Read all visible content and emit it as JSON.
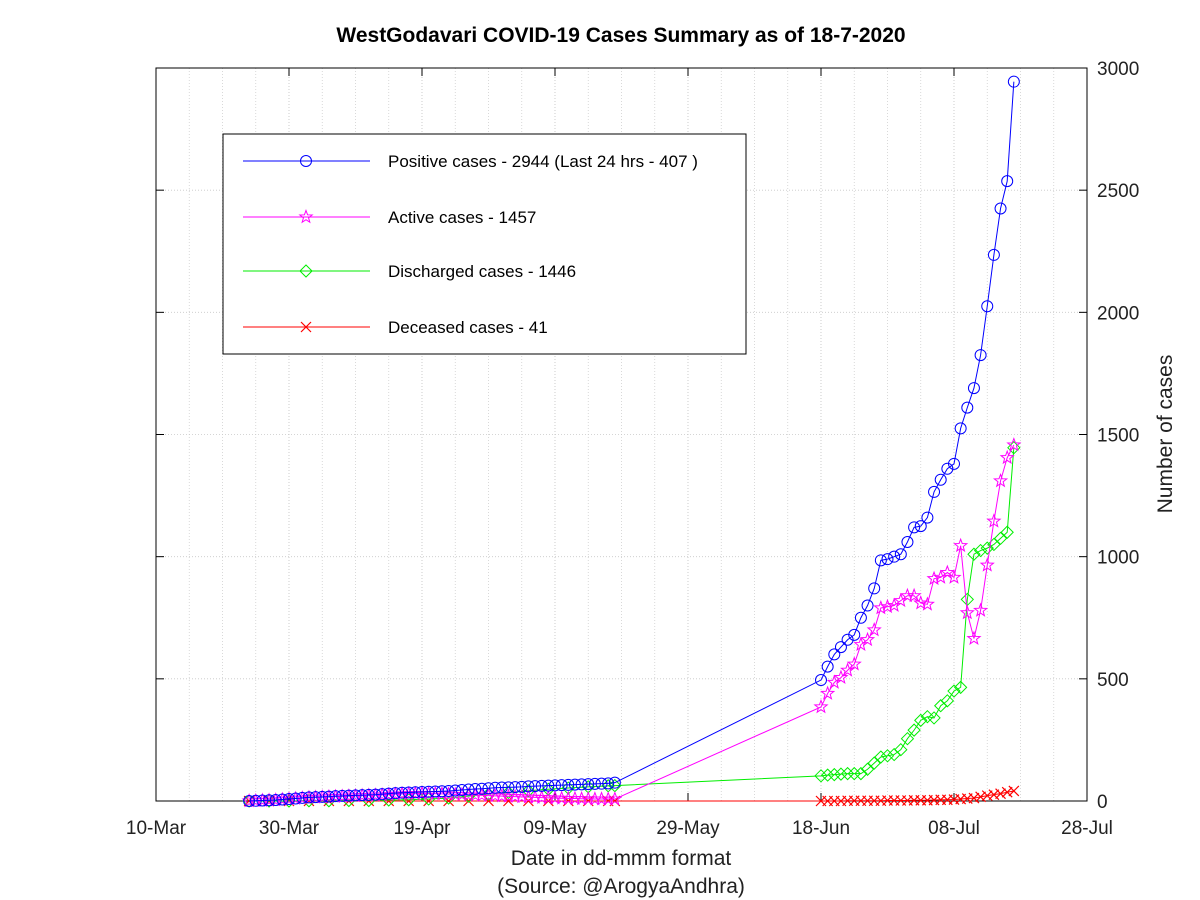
{
  "chart_data": {
    "type": "line",
    "title": "WestGodavari COVID-19 Cases Summary as of 18-7-2020",
    "xlabel": "Date in dd-mmm format",
    "xlabel_note": "(Source: @ArogyaAndhra)",
    "ylabel": "Number of cases",
    "xlim": [
      "2020-03-10",
      "2020-07-28"
    ],
    "ylim": [
      0,
      3000
    ],
    "x_ticks": [
      {
        "date": "2020-03-10",
        "label": "10-Mar"
      },
      {
        "date": "2020-03-30",
        "label": "30-Mar"
      },
      {
        "date": "2020-04-19",
        "label": "19-Apr"
      },
      {
        "date": "2020-05-09",
        "label": "09-May"
      },
      {
        "date": "2020-05-29",
        "label": "29-May"
      },
      {
        "date": "2020-06-18",
        "label": "18-Jun"
      },
      {
        "date": "2020-07-08",
        "label": "08-Jul"
      },
      {
        "date": "2020-07-28",
        "label": "28-Jul"
      }
    ],
    "y_ticks": [
      0,
      500,
      1000,
      1500,
      2000,
      2500,
      3000
    ],
    "y_axis_side": "right",
    "grid": "dotted",
    "legend_placement": "top-left",
    "series": [
      {
        "name": "Positive cases - 2944 (Last 24 hrs - 407 )",
        "color": "#0000ff",
        "marker": "circle",
        "points": [
          [
            "2020-03-24",
            0
          ],
          [
            "2020-03-25",
            1
          ],
          [
            "2020-03-26",
            2
          ],
          [
            "2020-03-27",
            3
          ],
          [
            "2020-03-28",
            4
          ],
          [
            "2020-03-29",
            6
          ],
          [
            "2020-03-30",
            8
          ],
          [
            "2020-03-31",
            10
          ],
          [
            "2020-04-01",
            13
          ],
          [
            "2020-04-02",
            15
          ],
          [
            "2020-04-03",
            16
          ],
          [
            "2020-04-04",
            17
          ],
          [
            "2020-04-05",
            18
          ],
          [
            "2020-04-06",
            20
          ],
          [
            "2020-04-07",
            21
          ],
          [
            "2020-04-08",
            22
          ],
          [
            "2020-04-09",
            23
          ],
          [
            "2020-04-10",
            24
          ],
          [
            "2020-04-11",
            25
          ],
          [
            "2020-04-12",
            26
          ],
          [
            "2020-04-13",
            28
          ],
          [
            "2020-04-14",
            30
          ],
          [
            "2020-04-15",
            32
          ],
          [
            "2020-04-16",
            34
          ],
          [
            "2020-04-17",
            35
          ],
          [
            "2020-04-18",
            36
          ],
          [
            "2020-04-19",
            37
          ],
          [
            "2020-04-20",
            38
          ],
          [
            "2020-04-21",
            39
          ],
          [
            "2020-04-22",
            40
          ],
          [
            "2020-04-23",
            41
          ],
          [
            "2020-04-24",
            43
          ],
          [
            "2020-04-25",
            45
          ],
          [
            "2020-04-26",
            47
          ],
          [
            "2020-04-27",
            49
          ],
          [
            "2020-04-28",
            50
          ],
          [
            "2020-04-29",
            52
          ],
          [
            "2020-04-30",
            54
          ],
          [
            "2020-05-01",
            55
          ],
          [
            "2020-05-02",
            56
          ],
          [
            "2020-05-03",
            57
          ],
          [
            "2020-05-04",
            58
          ],
          [
            "2020-05-05",
            60
          ],
          [
            "2020-05-06",
            61
          ],
          [
            "2020-05-07",
            62
          ],
          [
            "2020-05-08",
            63
          ],
          [
            "2020-05-09",
            64
          ],
          [
            "2020-05-10",
            65
          ],
          [
            "2020-05-11",
            66
          ],
          [
            "2020-05-12",
            67
          ],
          [
            "2020-05-13",
            68
          ],
          [
            "2020-05-14",
            69
          ],
          [
            "2020-05-15",
            70
          ],
          [
            "2020-05-16",
            71
          ],
          [
            "2020-05-17",
            72
          ],
          [
            "2020-05-18",
            75
          ],
          [
            "2020-06-18",
            495
          ],
          [
            "2020-06-19",
            550
          ],
          [
            "2020-06-20",
            600
          ],
          [
            "2020-06-21",
            630
          ],
          [
            "2020-06-22",
            660
          ],
          [
            "2020-06-23",
            680
          ],
          [
            "2020-06-24",
            750
          ],
          [
            "2020-06-25",
            800
          ],
          [
            "2020-06-26",
            870
          ],
          [
            "2020-06-27",
            985
          ],
          [
            "2020-06-28",
            990
          ],
          [
            "2020-06-29",
            1000
          ],
          [
            "2020-06-30",
            1010
          ],
          [
            "2020-07-01",
            1060
          ],
          [
            "2020-07-02",
            1120
          ],
          [
            "2020-07-03",
            1125
          ],
          [
            "2020-07-04",
            1160
          ],
          [
            "2020-07-05",
            1265
          ],
          [
            "2020-07-06",
            1315
          ],
          [
            "2020-07-07",
            1360
          ],
          [
            "2020-07-08",
            1380
          ],
          [
            "2020-07-09",
            1525
          ],
          [
            "2020-07-10",
            1610
          ],
          [
            "2020-07-11",
            1690
          ],
          [
            "2020-07-12",
            1825
          ],
          [
            "2020-07-13",
            2025
          ],
          [
            "2020-07-14",
            2235
          ],
          [
            "2020-07-15",
            2425
          ],
          [
            "2020-07-16",
            2537
          ],
          [
            "2020-07-17",
            2944
          ]
        ]
      },
      {
        "name": "Active cases - 1457",
        "color": "#ff00ff",
        "marker": "star",
        "points": [
          [
            "2020-03-24",
            0
          ],
          [
            "2020-03-25",
            1
          ],
          [
            "2020-03-26",
            2
          ],
          [
            "2020-03-27",
            3
          ],
          [
            "2020-03-28",
            4
          ],
          [
            "2020-03-29",
            6
          ],
          [
            "2020-03-30",
            8
          ],
          [
            "2020-03-31",
            10
          ],
          [
            "2020-04-01",
            12
          ],
          [
            "2020-04-02",
            14
          ],
          [
            "2020-04-03",
            15
          ],
          [
            "2020-04-04",
            16
          ],
          [
            "2020-04-05",
            17
          ],
          [
            "2020-04-06",
            18
          ],
          [
            "2020-04-07",
            19
          ],
          [
            "2020-04-08",
            20
          ],
          [
            "2020-04-09",
            21
          ],
          [
            "2020-04-10",
            22
          ],
          [
            "2020-04-11",
            23
          ],
          [
            "2020-04-12",
            24
          ],
          [
            "2020-04-13",
            25
          ],
          [
            "2020-04-14",
            26
          ],
          [
            "2020-04-15",
            28
          ],
          [
            "2020-04-16",
            29
          ],
          [
            "2020-04-17",
            30
          ],
          [
            "2020-04-18",
            30
          ],
          [
            "2020-04-19",
            31
          ],
          [
            "2020-04-20",
            30
          ],
          [
            "2020-04-21",
            30
          ],
          [
            "2020-04-22",
            29
          ],
          [
            "2020-04-23",
            28
          ],
          [
            "2020-04-24",
            27
          ],
          [
            "2020-04-25",
            26
          ],
          [
            "2020-04-26",
            25
          ],
          [
            "2020-04-27",
            24
          ],
          [
            "2020-04-28",
            23
          ],
          [
            "2020-04-29",
            22
          ],
          [
            "2020-04-30",
            21
          ],
          [
            "2020-05-01",
            20
          ],
          [
            "2020-05-02",
            19
          ],
          [
            "2020-05-03",
            18
          ],
          [
            "2020-05-04",
            17
          ],
          [
            "2020-05-05",
            16
          ],
          [
            "2020-05-06",
            15
          ],
          [
            "2020-05-07",
            14
          ],
          [
            "2020-05-08",
            13
          ],
          [
            "2020-05-09",
            12
          ],
          [
            "2020-05-10",
            11
          ],
          [
            "2020-05-11",
            10
          ],
          [
            "2020-05-12",
            10
          ],
          [
            "2020-05-13",
            9
          ],
          [
            "2020-05-14",
            9
          ],
          [
            "2020-05-15",
            8
          ],
          [
            "2020-05-16",
            8
          ],
          [
            "2020-05-17",
            8
          ],
          [
            "2020-05-18",
            8
          ],
          [
            "2020-06-18",
            385
          ],
          [
            "2020-06-19",
            440
          ],
          [
            "2020-06-20",
            485
          ],
          [
            "2020-06-21",
            505
          ],
          [
            "2020-06-22",
            535
          ],
          [
            "2020-06-23",
            560
          ],
          [
            "2020-06-24",
            640
          ],
          [
            "2020-06-25",
            660
          ],
          [
            "2020-06-26",
            700
          ],
          [
            "2020-06-27",
            790
          ],
          [
            "2020-06-28",
            795
          ],
          [
            "2020-06-29",
            800
          ],
          [
            "2020-06-30",
            820
          ],
          [
            "2020-07-01",
            840
          ],
          [
            "2020-07-02",
            840
          ],
          [
            "2020-07-03",
            810
          ],
          [
            "2020-07-04",
            805
          ],
          [
            "2020-07-05",
            910
          ],
          [
            "2020-07-06",
            915
          ],
          [
            "2020-07-07",
            935
          ],
          [
            "2020-07-08",
            915
          ],
          [
            "2020-07-09",
            1045
          ],
          [
            "2020-07-10",
            770
          ],
          [
            "2020-07-11",
            665
          ],
          [
            "2020-07-12",
            780
          ],
          [
            "2020-07-13",
            965
          ],
          [
            "2020-07-14",
            1145
          ],
          [
            "2020-07-15",
            1310
          ],
          [
            "2020-07-16",
            1405
          ],
          [
            "2020-07-17",
            1457
          ]
        ]
      },
      {
        "name": "Discharged cases - 1446",
        "color": "#00ee00",
        "marker": "diamond",
        "points": [
          [
            "2020-03-24",
            0
          ],
          [
            "2020-03-27",
            0
          ],
          [
            "2020-03-30",
            0
          ],
          [
            "2020-04-02",
            1
          ],
          [
            "2020-04-05",
            1
          ],
          [
            "2020-04-08",
            2
          ],
          [
            "2020-04-11",
            2
          ],
          [
            "2020-04-14",
            4
          ],
          [
            "2020-04-17",
            5
          ],
          [
            "2020-04-20",
            8
          ],
          [
            "2020-04-23",
            12
          ],
          [
            "2020-04-26",
            20
          ],
          [
            "2020-04-29",
            28
          ],
          [
            "2020-05-02",
            35
          ],
          [
            "2020-05-05",
            42
          ],
          [
            "2020-05-08",
            48
          ],
          [
            "2020-05-11",
            53
          ],
          [
            "2020-05-14",
            58
          ],
          [
            "2020-05-17",
            62
          ],
          [
            "2020-05-18",
            63
          ],
          [
            "2020-06-18",
            103
          ],
          [
            "2020-06-19",
            106
          ],
          [
            "2020-06-20",
            108
          ],
          [
            "2020-06-21",
            110
          ],
          [
            "2020-06-22",
            112
          ],
          [
            "2020-06-23",
            112
          ],
          [
            "2020-06-24",
            112
          ],
          [
            "2020-06-25",
            130
          ],
          [
            "2020-06-26",
            155
          ],
          [
            "2020-06-27",
            180
          ],
          [
            "2020-06-28",
            185
          ],
          [
            "2020-06-29",
            190
          ],
          [
            "2020-06-30",
            210
          ],
          [
            "2020-07-01",
            255
          ],
          [
            "2020-07-02",
            290
          ],
          [
            "2020-07-03",
            330
          ],
          [
            "2020-07-04",
            345
          ],
          [
            "2020-07-05",
            340
          ],
          [
            "2020-07-06",
            390
          ],
          [
            "2020-07-07",
            410
          ],
          [
            "2020-07-08",
            450
          ],
          [
            "2020-07-09",
            465
          ],
          [
            "2020-07-10",
            825
          ],
          [
            "2020-07-11",
            1010
          ],
          [
            "2020-07-12",
            1025
          ],
          [
            "2020-07-13",
            1035
          ],
          [
            "2020-07-14",
            1050
          ],
          [
            "2020-07-15",
            1075
          ],
          [
            "2020-07-16",
            1100
          ],
          [
            "2020-07-17",
            1446
          ]
        ]
      },
      {
        "name": "Deceased cases - 41",
        "color": "#ff0000",
        "marker": "x",
        "points": [
          [
            "2020-03-24",
            0
          ],
          [
            "2020-03-27",
            0
          ],
          [
            "2020-03-30",
            0
          ],
          [
            "2020-04-02",
            0
          ],
          [
            "2020-04-05",
            0
          ],
          [
            "2020-04-08",
            0
          ],
          [
            "2020-04-11",
            0
          ],
          [
            "2020-04-14",
            0
          ],
          [
            "2020-04-17",
            0
          ],
          [
            "2020-04-20",
            0
          ],
          [
            "2020-04-23",
            0
          ],
          [
            "2020-04-26",
            0
          ],
          [
            "2020-04-29",
            0
          ],
          [
            "2020-05-02",
            0
          ],
          [
            "2020-05-05",
            0
          ],
          [
            "2020-05-08",
            0
          ],
          [
            "2020-05-11",
            0
          ],
          [
            "2020-05-14",
            0
          ],
          [
            "2020-05-17",
            0
          ],
          [
            "2020-05-18",
            0
          ],
          [
            "2020-06-18",
            0
          ],
          [
            "2020-06-19",
            0
          ],
          [
            "2020-06-20",
            0
          ],
          [
            "2020-06-21",
            0
          ],
          [
            "2020-06-22",
            1
          ],
          [
            "2020-06-23",
            1
          ],
          [
            "2020-06-24",
            1
          ],
          [
            "2020-06-25",
            1
          ],
          [
            "2020-06-26",
            1
          ],
          [
            "2020-06-27",
            1
          ],
          [
            "2020-06-28",
            2
          ],
          [
            "2020-06-29",
            2
          ],
          [
            "2020-06-30",
            2
          ],
          [
            "2020-07-01",
            2
          ],
          [
            "2020-07-02",
            3
          ],
          [
            "2020-07-03",
            3
          ],
          [
            "2020-07-04",
            3
          ],
          [
            "2020-07-05",
            4
          ],
          [
            "2020-07-06",
            5
          ],
          [
            "2020-07-07",
            5
          ],
          [
            "2020-07-08",
            6
          ],
          [
            "2020-07-09",
            8
          ],
          [
            "2020-07-10",
            10
          ],
          [
            "2020-07-11",
            12
          ],
          [
            "2020-07-12",
            17
          ],
          [
            "2020-07-13",
            22
          ],
          [
            "2020-07-14",
            26
          ],
          [
            "2020-07-15",
            30
          ],
          [
            "2020-07-16",
            36
          ],
          [
            "2020-07-17",
            41
          ]
        ]
      }
    ]
  }
}
